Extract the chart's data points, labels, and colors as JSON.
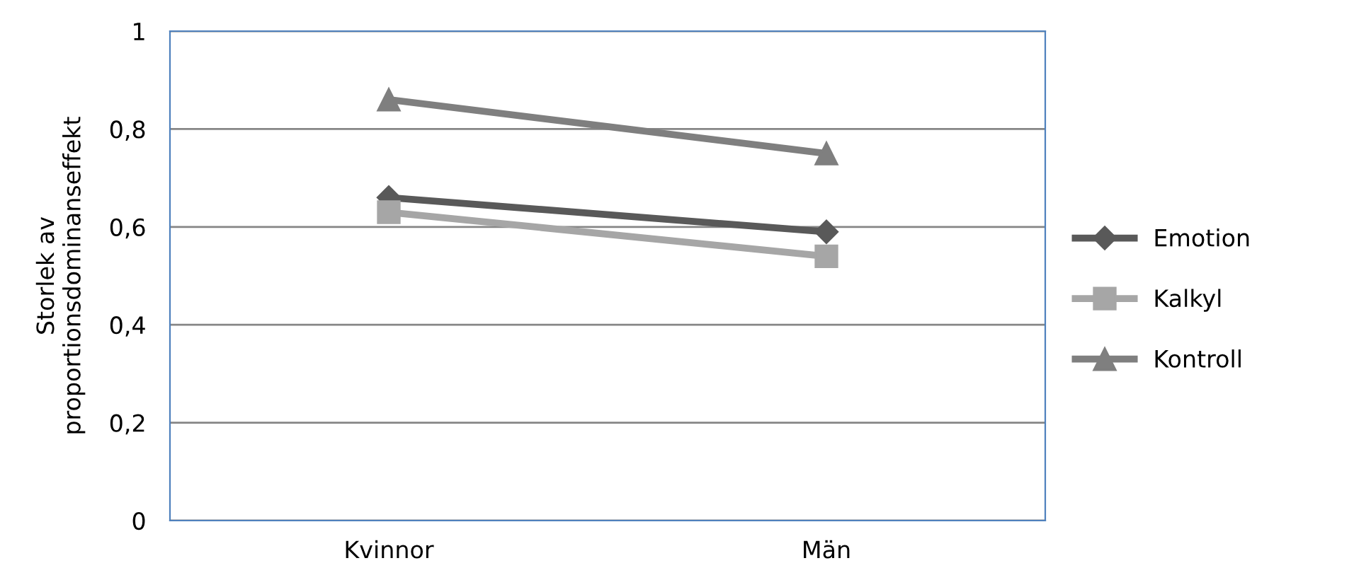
{
  "chart_data": {
    "type": "line",
    "ylabel": "Storlek av\nproportionsdominanseffekt",
    "categories": [
      "Kvinnor",
      "Män"
    ],
    "series": [
      {
        "name": "Emotion",
        "color": "#595959",
        "marker": "diamond",
        "values": [
          0.66,
          0.59
        ]
      },
      {
        "name": "Kalkyl",
        "color": "#a6a6a6",
        "marker": "square",
        "values": [
          0.63,
          0.54
        ]
      },
      {
        "name": "Kontroll",
        "color": "#7f7f7f",
        "marker": "triangle",
        "values": [
          0.86,
          0.75
        ]
      }
    ],
    "ylim": [
      0,
      1
    ],
    "yticks": [
      0,
      {
        "value": 0.2,
        "label": "0,2"
      },
      {
        "value": 0.4,
        "label": "0,4"
      },
      {
        "value": 0.6,
        "label": "0,6"
      },
      {
        "value": 0.8,
        "label": "0,8"
      },
      1
    ],
    "grid": "y",
    "legend": "right",
    "line_style": "solid"
  }
}
